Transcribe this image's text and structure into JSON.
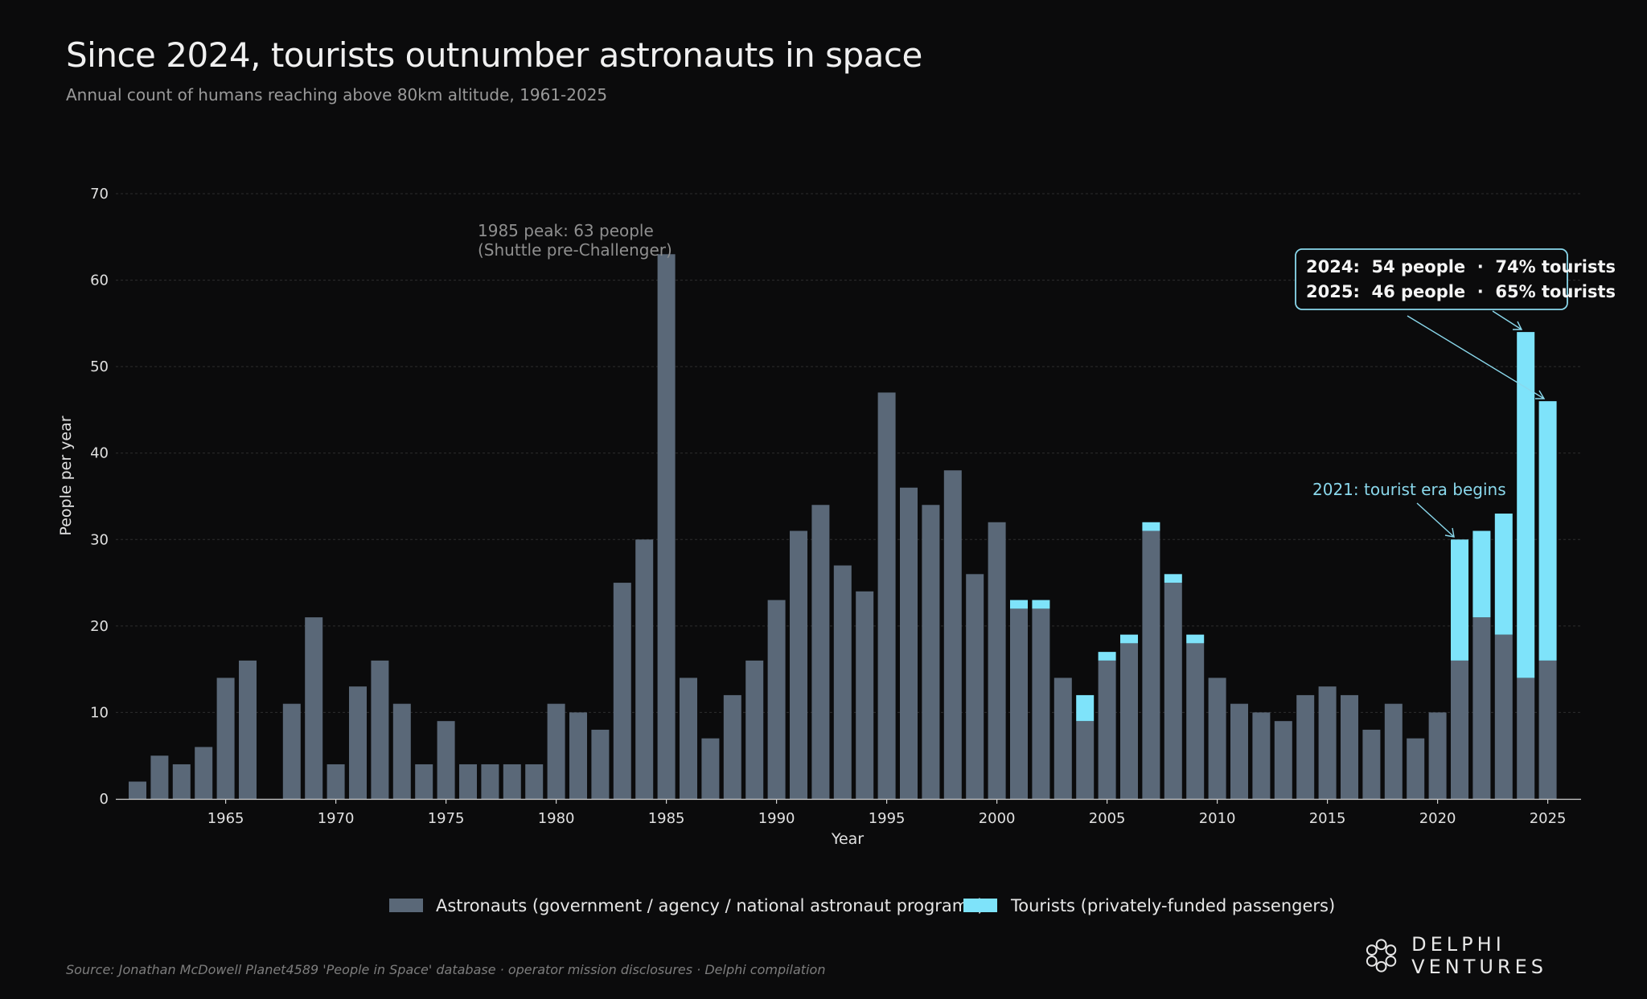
{
  "header": {
    "title": "Since 2024, tourists outnumber astronauts in space",
    "subtitle": "Annual count of humans reaching above 80km altitude, 1961-2025"
  },
  "footer": {
    "source": "Source: Jonathan McDowell Planet4589 'People in Space' database · operator mission disclosures · Delphi compilation",
    "brand": "DELPHI VENTURES"
  },
  "colors": {
    "background": "#0b0b0c",
    "astronauts": "#5a6878",
    "tourists": "#7ee3fa",
    "annotation_cyan": "#8ad8ec",
    "annotation_grey": "#8f8f8f"
  },
  "chart_data": {
    "type": "bar",
    "stacked": true,
    "xlabel": "Year",
    "ylabel": "People per year",
    "ylim": [
      0,
      70
    ],
    "yticks": [
      0,
      10,
      20,
      30,
      40,
      50,
      60,
      70
    ],
    "xticks": [
      1965,
      1970,
      1975,
      1980,
      1985,
      1990,
      1995,
      2000,
      2005,
      2010,
      2015,
      2020,
      2025
    ],
    "grid": "horizontal dashed",
    "legend_position": "bottom-center",
    "categories": [
      1961,
      1962,
      1963,
      1964,
      1965,
      1966,
      1967,
      1968,
      1969,
      1970,
      1971,
      1972,
      1973,
      1974,
      1975,
      1976,
      1977,
      1978,
      1979,
      1980,
      1981,
      1982,
      1983,
      1984,
      1985,
      1986,
      1987,
      1988,
      1989,
      1990,
      1991,
      1992,
      1993,
      1994,
      1995,
      1996,
      1997,
      1998,
      1999,
      2000,
      2001,
      2002,
      2003,
      2004,
      2005,
      2006,
      2007,
      2008,
      2009,
      2010,
      2011,
      2012,
      2013,
      2014,
      2015,
      2016,
      2017,
      2018,
      2019,
      2020,
      2021,
      2022,
      2023,
      2024,
      2025
    ],
    "series": [
      {
        "name": "Astronauts (government / agency / national astronaut programs)",
        "values": [
          2,
          5,
          4,
          6,
          14,
          16,
          0,
          11,
          21,
          4,
          13,
          16,
          11,
          4,
          9,
          4,
          4,
          4,
          4,
          11,
          10,
          8,
          25,
          30,
          63,
          14,
          7,
          12,
          16,
          23,
          31,
          34,
          27,
          24,
          47,
          36,
          34,
          38,
          26,
          32,
          22,
          22,
          14,
          9,
          16,
          18,
          31,
          25,
          18,
          14,
          11,
          10,
          9,
          12,
          13,
          12,
          8,
          11,
          7,
          10,
          16,
          21,
          19,
          14,
          16
        ]
      },
      {
        "name": "Tourists (privately-funded passengers)",
        "values": [
          0,
          0,
          0,
          0,
          0,
          0,
          0,
          0,
          0,
          0,
          0,
          0,
          0,
          0,
          0,
          0,
          0,
          0,
          0,
          0,
          0,
          0,
          0,
          0,
          0,
          0,
          0,
          0,
          0,
          0,
          0,
          0,
          0,
          0,
          0,
          0,
          0,
          0,
          0,
          0,
          1,
          1,
          0,
          3,
          1,
          1,
          1,
          1,
          1,
          0,
          0,
          0,
          0,
          0,
          0,
          0,
          0,
          0,
          0,
          0,
          14,
          10,
          14,
          40,
          30
        ]
      }
    ],
    "annotations": {
      "peak_line1": "1985 peak: 63 people",
      "peak_line2": "(Shuttle pre-Challenger)",
      "tourist_era": "2021: tourist era begins",
      "box_line1": "2024:  54 people  ·  74% tourists",
      "box_line2": "2025:  46 people  ·  65% tourists"
    }
  }
}
